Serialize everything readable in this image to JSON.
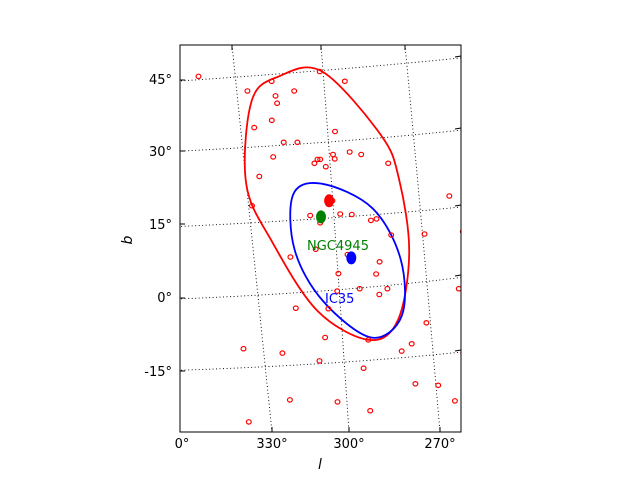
{
  "chart_data": {
    "type": "scatter",
    "title": "",
    "xlabel": "l",
    "ylabel": "b",
    "projection": "sky map, galactic coordinates",
    "x_ticks": [
      "0°",
      "330°",
      "300°",
      "270°"
    ],
    "y_ticks": [
      "45°",
      "30°",
      "15°",
      "0°",
      "-15°"
    ],
    "grid": true,
    "galaxies": {
      "color": "#ff0000",
      "points": [
        [
          347.5,
          52.5
        ],
        [
          312.5,
          52.5
        ],
        [
          276,
          45
        ],
        [
          312,
          42
        ],
        [
          333.5,
          44
        ],
        [
          325,
          46
        ],
        [
          304.5,
          44
        ],
        [
          293.6,
          42
        ],
        [
          304,
          41
        ],
        [
          303.6,
          39.5
        ],
        [
          291.6,
          34.5
        ],
        [
          299.3,
          36
        ],
        [
          322,
          33.7
        ],
        [
          301,
          31.5
        ],
        [
          306.2,
          31.5
        ],
        [
          328.6,
          29
        ],
        [
          324.6,
          29.5
        ],
        [
          318,
          29
        ],
        [
          312.5,
          28
        ],
        [
          311.5,
          28
        ],
        [
          318,
          28.1
        ],
        [
          295.2,
          28.5
        ],
        [
          309.8,
          27.2
        ],
        [
          313.6,
          26.5
        ],
        [
          287.7,
          24.5
        ],
        [
          337.4,
          27.2
        ],
        [
          354.8,
          20.5
        ],
        [
          354,
          13.2
        ],
        [
          340,
          12.7
        ],
        [
          311.5,
          19.5
        ],
        [
          281.7,
          18.5
        ],
        [
          316.7,
          16.7
        ],
        [
          312.6,
          16.8
        ],
        [
          322.8,
          15.5
        ],
        [
          325,
          15.8
        ],
        [
          328,
          12.5
        ],
        [
          301.6,
          16.5
        ],
        [
          304.3,
          15
        ],
        [
          299.5,
          9.6
        ],
        [
          310,
          8.5
        ],
        [
          320.3,
          7
        ],
        [
          317.5,
          4.5
        ],
        [
          304.5,
          4.6
        ],
        [
          319.5,
          1.5
        ],
        [
          310,
          1.5
        ],
        [
          344,
          1.5
        ],
        [
          316,
          0.3
        ],
        [
          302,
          1
        ],
        [
          289.7,
          8
        ],
        [
          286,
          -2.5
        ],
        [
          297,
          -2.6
        ],
        [
          347.5,
          -4
        ],
        [
          306.8,
          -9
        ],
        [
          328.3,
          -5.5
        ],
        [
          320.7,
          -9.8
        ],
        [
          316.5,
          -11.3
        ],
        [
          292.7,
          -8.5
        ],
        [
          264.6,
          -10.8
        ],
        [
          277,
          -11.7
        ],
        [
          336.5,
          -11.7
        ],
        [
          302,
          -14.8
        ],
        [
          288.4,
          -13.3
        ],
        [
          317,
          -18
        ],
        [
          333.5,
          -18.5
        ],
        [
          347.5,
          -20.7
        ],
        [
          324.2,
          -18.3
        ],
        [
          327.6,
          -21.5
        ],
        [
          299.5,
          -23.5
        ],
        [
          290,
          -21.7
        ],
        [
          275,
          -21.3
        ],
        [
          260,
          -25.8
        ],
        [
          357,
          -18.5
        ],
        [
          357.2,
          -19.8
        ]
      ]
    },
    "markers": [
      {
        "name": "red",
        "l": 310.3,
        "b": 19.5,
        "color": "#ff0000"
      },
      {
        "name": "green",
        "l": 305.3,
        "b": 16.2,
        "color": "#008000"
      },
      {
        "name": "blue",
        "l": 310.9,
        "b": 7.8,
        "color": "#0000ff"
      }
    ],
    "contours": [
      {
        "name": "red-contour",
        "color": "#ff0000",
        "points": [
          [
            339,
            33
          ],
          [
            326,
            46
          ],
          [
            308,
            45
          ],
          [
            294,
            40
          ],
          [
            282,
            23
          ],
          [
            285,
            11
          ],
          [
            293,
            -3
          ],
          [
            307,
            -9
          ],
          [
            319,
            -5
          ],
          [
            332,
            9
          ],
          [
            339,
            24
          ]
        ]
      },
      {
        "name": "blue-contour",
        "color": "#0000ff",
        "points": [
          [
            310,
            23
          ],
          [
            298,
            20.8
          ],
          [
            292,
            9.5
          ],
          [
            296,
            -1
          ],
          [
            308,
            -8.5
          ],
          [
            321,
            -4
          ],
          [
            328,
            7.5
          ],
          [
            325,
            18
          ]
        ]
      }
    ],
    "annotations": [
      {
        "text": "NGC4945",
        "color": "#008000"
      },
      {
        "text": "IC35",
        "color": "#0000ff"
      }
    ]
  }
}
